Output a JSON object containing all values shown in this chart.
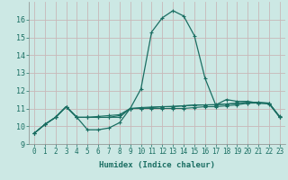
{
  "xlabel": "Humidex (Indice chaleur)",
  "xlim": [
    -0.5,
    23.5
  ],
  "ylim": [
    9,
    17
  ],
  "yticks": [
    9,
    10,
    11,
    12,
    13,
    14,
    15,
    16
  ],
  "xticks": [
    0,
    1,
    2,
    3,
    4,
    5,
    6,
    7,
    8,
    9,
    10,
    11,
    12,
    13,
    14,
    15,
    16,
    17,
    18,
    19,
    20,
    21,
    22,
    23
  ],
  "bg_color": "#cce8e4",
  "grid_color": "#c8b8b8",
  "line_color": "#1a6e62",
  "lines": [
    {
      "x": [
        0,
        1,
        2,
        3,
        4,
        5,
        6,
        7,
        8,
        9,
        10,
        11,
        12,
        13,
        14,
        15,
        16,
        17,
        18,
        19,
        20,
        21,
        22,
        23
      ],
      "y": [
        9.6,
        10.1,
        10.5,
        11.1,
        10.5,
        9.8,
        9.8,
        9.9,
        10.2,
        11.0,
        12.1,
        15.3,
        16.1,
        16.5,
        16.2,
        15.1,
        12.7,
        11.2,
        11.5,
        11.4,
        11.4,
        11.3,
        11.3,
        10.5
      ],
      "marker": "+",
      "markersize": 3.0,
      "linewidth": 0.9
    },
    {
      "x": [
        0,
        1,
        2,
        3,
        4,
        5,
        6,
        7,
        8,
        9,
        10,
        11,
        12,
        13,
        14,
        15,
        16,
        17,
        18,
        19,
        20,
        21,
        22,
        23
      ],
      "y": [
        9.6,
        10.1,
        10.5,
        11.1,
        10.5,
        10.5,
        10.5,
        10.5,
        10.5,
        11.0,
        11.0,
        11.0,
        11.0,
        11.0,
        11.0,
        11.05,
        11.1,
        11.1,
        11.15,
        11.2,
        11.3,
        11.3,
        11.25,
        10.5
      ],
      "marker": "+",
      "markersize": 2.5,
      "linewidth": 0.8
    },
    {
      "x": [
        0,
        1,
        2,
        3,
        4,
        5,
        6,
        7,
        8,
        9,
        10,
        11,
        12,
        13,
        14,
        15,
        16,
        17,
        18,
        19,
        20,
        21,
        22,
        23
      ],
      "y": [
        9.6,
        10.1,
        10.5,
        11.1,
        10.5,
        10.5,
        10.5,
        10.5,
        10.6,
        11.0,
        11.0,
        11.05,
        11.1,
        11.1,
        11.15,
        11.2,
        11.2,
        11.2,
        11.25,
        11.3,
        11.35,
        11.35,
        11.3,
        10.5
      ],
      "marker": "+",
      "markersize": 2.5,
      "linewidth": 0.8
    },
    {
      "x": [
        0,
        1,
        2,
        3,
        4,
        5,
        6,
        7,
        8,
        9,
        10,
        11,
        12,
        13,
        14,
        15,
        16,
        17,
        18,
        19,
        20,
        21,
        22,
        23
      ],
      "y": [
        9.6,
        10.1,
        10.5,
        11.1,
        10.5,
        10.5,
        10.55,
        10.6,
        10.65,
        11.0,
        11.05,
        11.08,
        11.1,
        11.12,
        11.15,
        11.18,
        11.2,
        11.22,
        11.25,
        11.28,
        11.3,
        11.32,
        11.3,
        10.55
      ],
      "marker": "+",
      "markersize": 2.5,
      "linewidth": 0.8
    }
  ]
}
